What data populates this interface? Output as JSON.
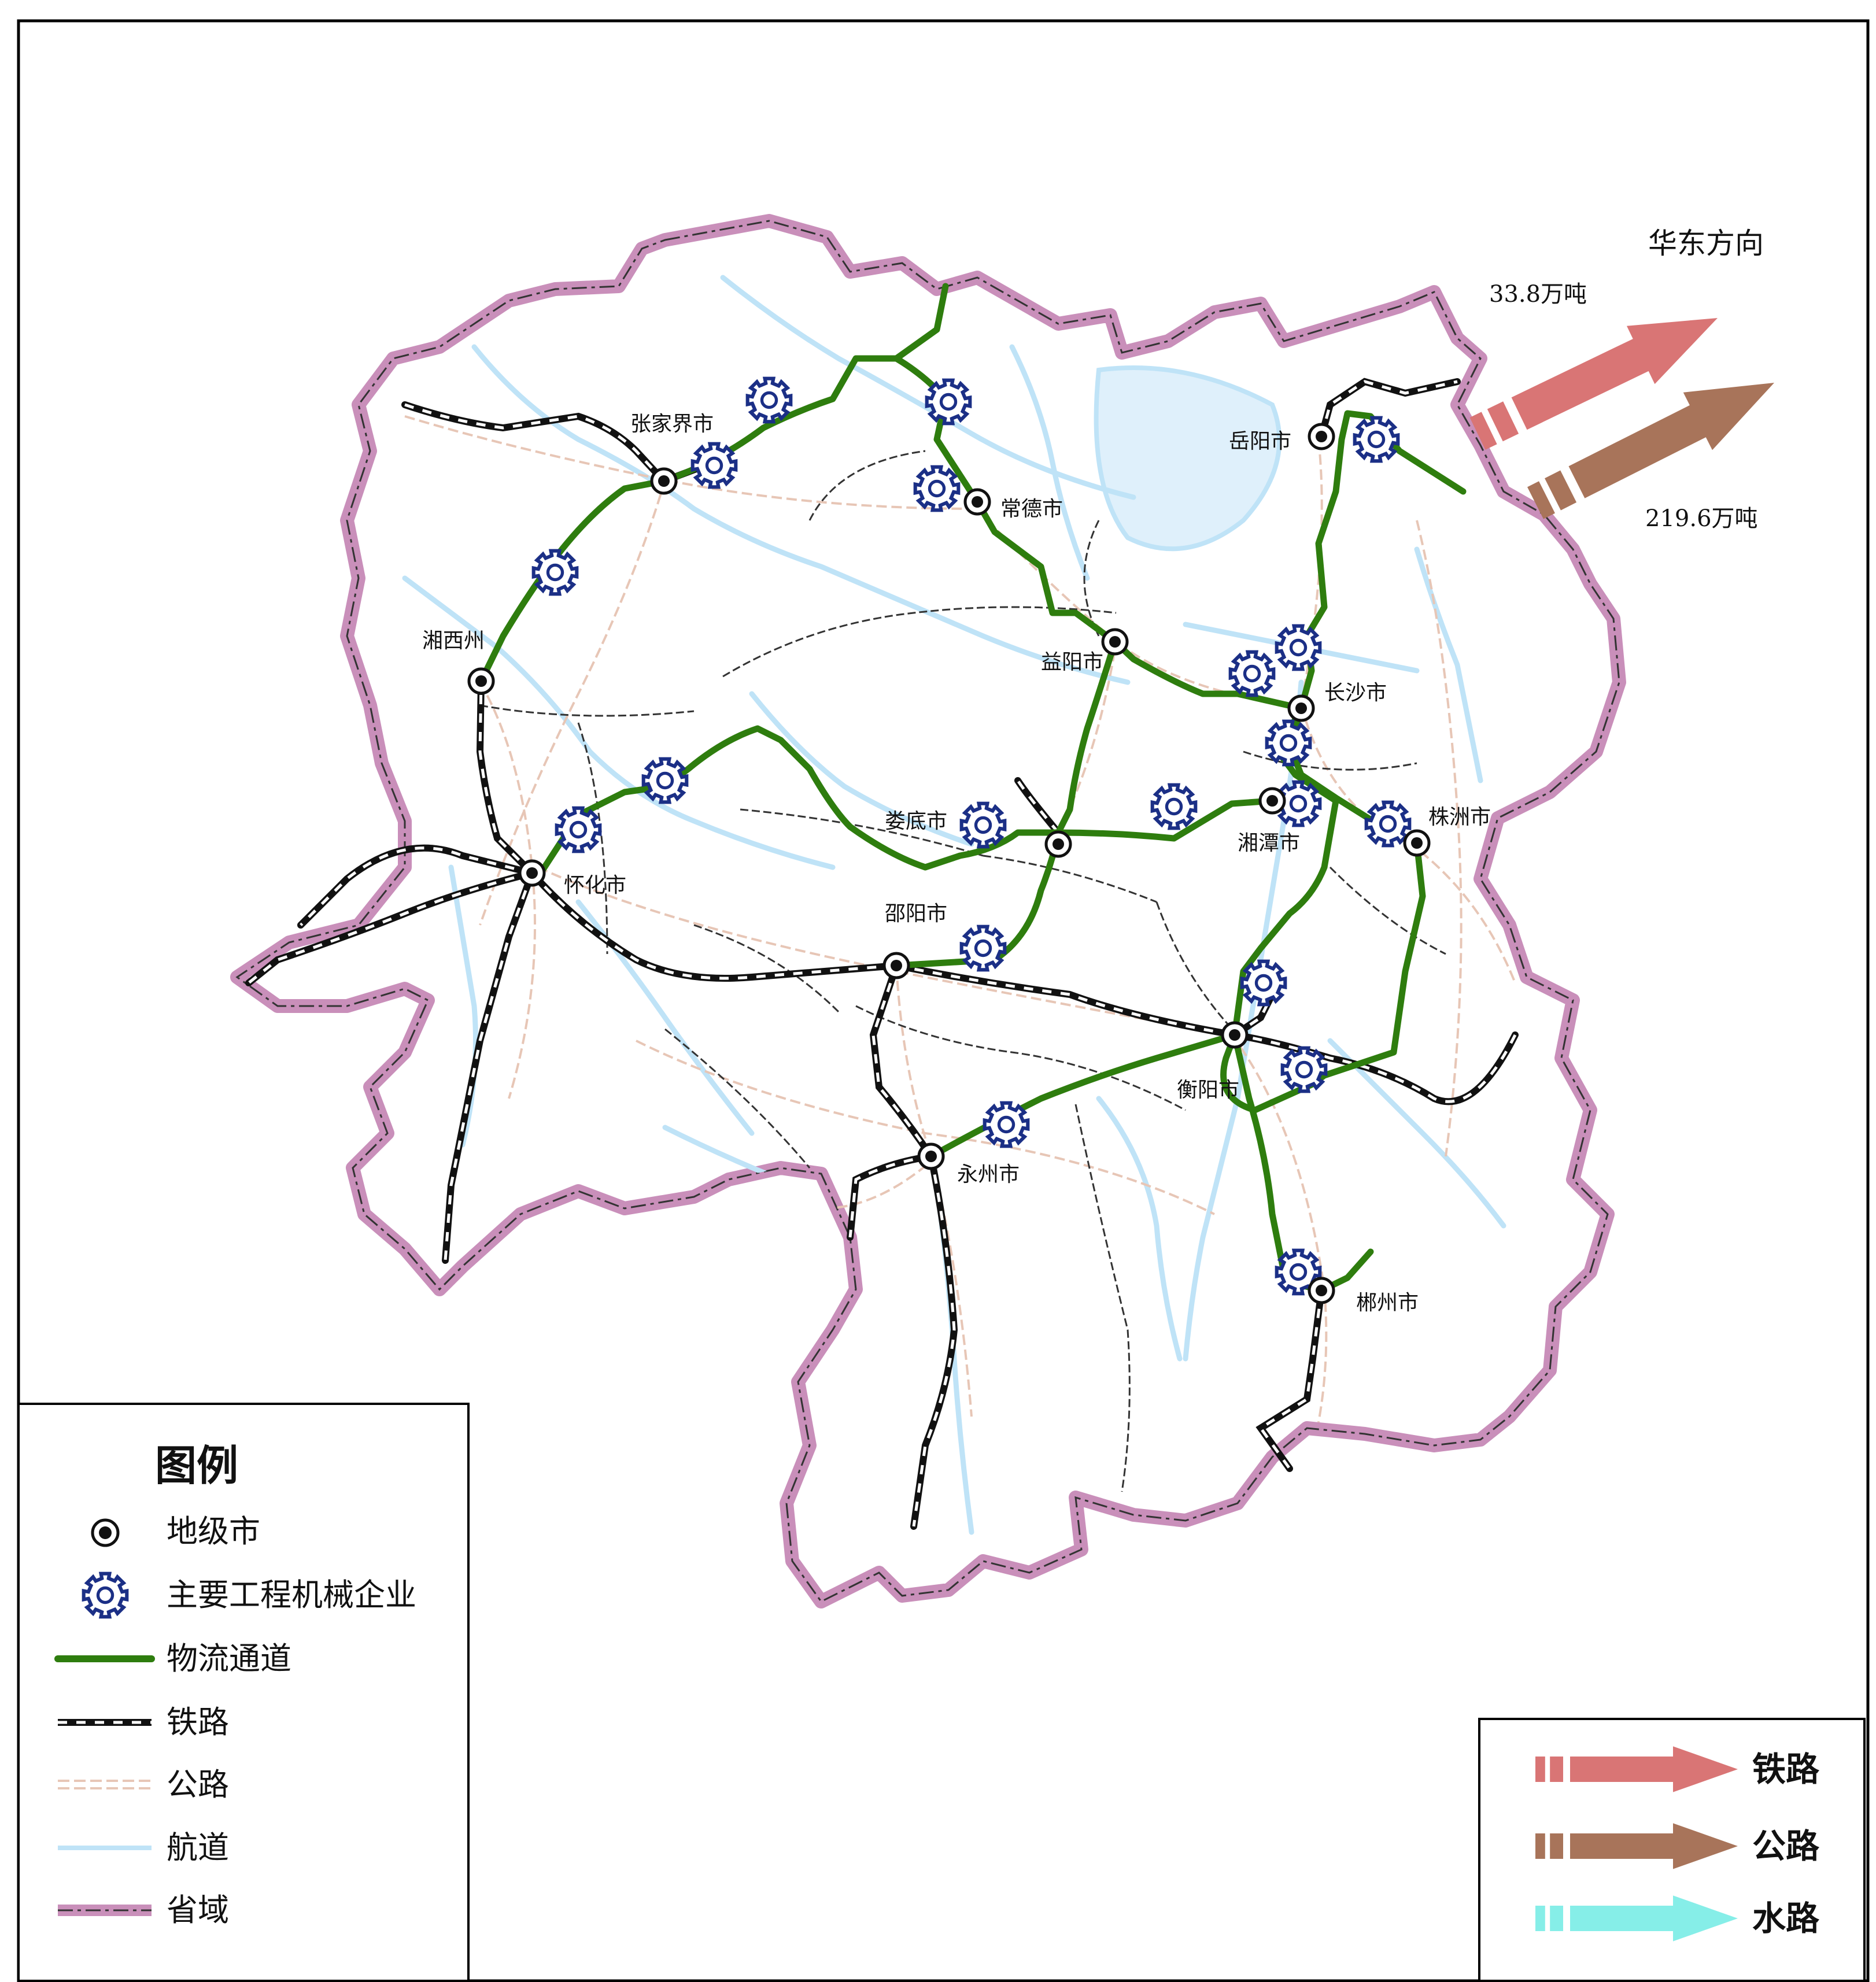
{
  "colors": {
    "border": "#c98fba",
    "border_dash": "#333333",
    "river": "#bfe3f7",
    "road": "#e7c6b6",
    "district": "#333333",
    "logistics": "#2e7d0e",
    "enterprise": "#1b2f86",
    "rail_export": "#d97575",
    "road_export": "#a8745a",
    "water_export": "#86eee8"
  },
  "cities": [
    {
      "id": "zhangjiajie",
      "name": "张家界市"
    },
    {
      "id": "changde",
      "name": "常德市"
    },
    {
      "id": "yueyang",
      "name": "岳阳市"
    },
    {
      "id": "xiangxi",
      "name": "湘西州"
    },
    {
      "id": "yiyang",
      "name": "益阳市"
    },
    {
      "id": "changsha",
      "name": "长沙市"
    },
    {
      "id": "loudi",
      "name": "娄底市"
    },
    {
      "id": "xiangtan",
      "name": "湘潭市"
    },
    {
      "id": "zhuzhou",
      "name": "株洲市"
    },
    {
      "id": "huaihua",
      "name": "怀化市"
    },
    {
      "id": "shaoyang",
      "name": "邵阳市"
    },
    {
      "id": "hengyang",
      "name": "衡阳市"
    },
    {
      "id": "yongzhou",
      "name": "永州市"
    },
    {
      "id": "chenzhou",
      "name": "郴州市"
    }
  ],
  "flows": {
    "direction": "华东方向",
    "rail_volume": "33.8万吨",
    "road_volume": "219.6万吨"
  },
  "legend": {
    "title": "图例",
    "items": [
      {
        "icon": "city-dot-icon",
        "label": "地级市"
      },
      {
        "icon": "gear-icon",
        "label": "主要工程机械企业"
      },
      {
        "icon": "logistics-line-icon",
        "label": "物流通道"
      },
      {
        "icon": "railway-line-icon",
        "label": "铁路"
      },
      {
        "icon": "highway-line-icon",
        "label": "公路"
      },
      {
        "icon": "waterway-line-icon",
        "label": "航道"
      },
      {
        "icon": "province-border-icon",
        "label": "省域"
      }
    ]
  },
  "modes": {
    "items": [
      {
        "icon": "rail-arrow-icon",
        "label": "铁路"
      },
      {
        "icon": "road-arrow-icon",
        "label": "公路"
      },
      {
        "icon": "water-arrow-icon",
        "label": "水路"
      }
    ]
  }
}
